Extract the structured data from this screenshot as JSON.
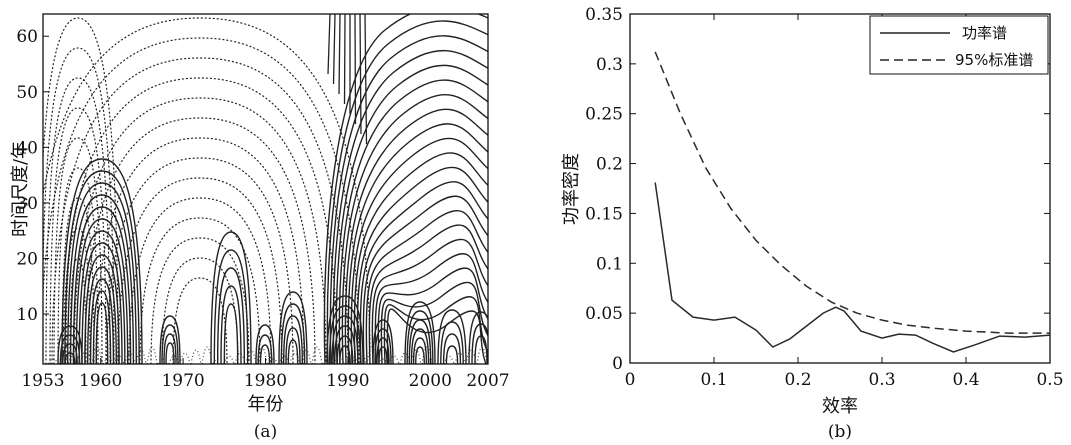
{
  "chart_data": [
    {
      "type": "contour",
      "panel_label": "(a)",
      "xlabel": "年份",
      "ylabel": "时间尺度/年",
      "xlim": [
        1953,
        2007
      ],
      "ylim": [
        1,
        64
      ],
      "x_ticks": [
        "1953",
        "1960",
        "1970",
        "1980",
        "1990",
        "2000",
        "2007"
      ],
      "y_ticks": [
        "10",
        "20",
        "30",
        "40",
        "50",
        "60"
      ],
      "x_tick_values": [
        1953,
        1960,
        1970,
        1980,
        1990,
        2000,
        2007
      ],
      "y_tick_values": [
        10,
        20,
        30,
        40,
        50,
        60
      ],
      "contour_styles": {
        "positive": "solid",
        "negative": "dotted"
      }
    },
    {
      "type": "line",
      "panel_label": "(b)",
      "xlabel": "效率",
      "ylabel": "功率密度",
      "xlim": [
        0,
        0.5
      ],
      "ylim": [
        0,
        0.35
      ],
      "x_ticks": [
        "0",
        "0.1",
        "0.2",
        "0.3",
        "0.4",
        "0.5"
      ],
      "y_ticks": [
        "0",
        "0.05",
        "0.1",
        "0.15",
        "0.2",
        "0.25",
        "0.3",
        "0.35"
      ],
      "x_tick_values": [
        0,
        0.1,
        0.2,
        0.3,
        0.4,
        0.5
      ],
      "y_tick_values": [
        0,
        0.05,
        0.1,
        0.15,
        0.2,
        0.25,
        0.3,
        0.35
      ],
      "legend_position": "top-right",
      "series": [
        {
          "name": "功率谱",
          "style": "solid",
          "x": [
            0.03,
            0.05,
            0.075,
            0.1,
            0.125,
            0.15,
            0.17,
            0.19,
            0.21,
            0.23,
            0.245,
            0.255,
            0.275,
            0.3,
            0.32,
            0.34,
            0.36,
            0.385,
            0.41,
            0.44,
            0.47,
            0.5
          ],
          "y": [
            0.181,
            0.063,
            0.046,
            0.043,
            0.046,
            0.033,
            0.016,
            0.024,
            0.037,
            0.05,
            0.056,
            0.052,
            0.032,
            0.025,
            0.029,
            0.028,
            0.02,
            0.011,
            0.018,
            0.027,
            0.026,
            0.028
          ]
        },
        {
          "name": "95%标准谱",
          "style": "dashed",
          "x": [
            0.03,
            0.06,
            0.09,
            0.12,
            0.15,
            0.18,
            0.21,
            0.24,
            0.27,
            0.3,
            0.33,
            0.36,
            0.4,
            0.45,
            0.5
          ],
          "y": [
            0.312,
            0.25,
            0.196,
            0.155,
            0.123,
            0.098,
            0.077,
            0.061,
            0.05,
            0.043,
            0.038,
            0.035,
            0.032,
            0.03,
            0.03
          ]
        }
      ]
    }
  ]
}
